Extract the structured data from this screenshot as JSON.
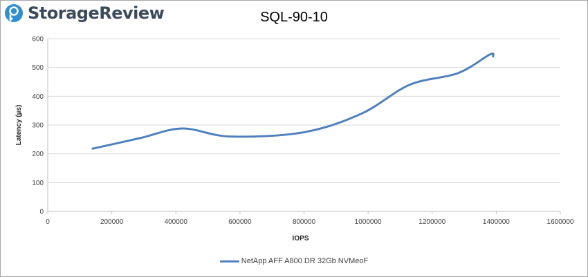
{
  "brand": {
    "name": "StorageReview",
    "logo_icon": "storagereview-logo-icon",
    "colors": {
      "mark": "#2e8fd1",
      "text": "#3a4a5a"
    }
  },
  "chart_data": {
    "type": "line",
    "title": "SQL-90-10",
    "xlabel": "IOPS",
    "ylabel": "Latency (µs)",
    "xlim": [
      0,
      1600000
    ],
    "ylim": [
      0,
      600
    ],
    "xticks": [
      0,
      200000,
      400000,
      600000,
      800000,
      1000000,
      1200000,
      1400000,
      1600000
    ],
    "yticks": [
      0,
      100,
      200,
      300,
      400,
      500,
      600
    ],
    "grid": true,
    "legend_position": "bottom",
    "series": [
      {
        "name": "NetApp AFF A800 DR 32Gb NVMeoF",
        "color": "#4f81bd",
        "points": [
          [
            140000,
            218
          ],
          [
            290000,
            255
          ],
          [
            420000,
            288
          ],
          [
            570000,
            260
          ],
          [
            800000,
            275
          ],
          [
            980000,
            340
          ],
          [
            1130000,
            440
          ],
          [
            1280000,
            480
          ],
          [
            1380000,
            545
          ],
          [
            1390000,
            538
          ]
        ]
      }
    ]
  }
}
